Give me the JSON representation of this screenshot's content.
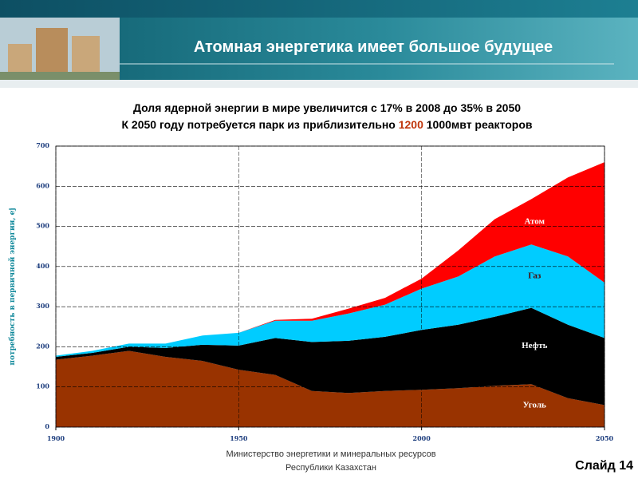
{
  "slide": {
    "title": "Атомная энергетика имеет большое будущее",
    "footer": [
      "Министерство энергетики и минеральных ресурсов",
      "Республики Казахстан"
    ],
    "number": "Слайд 14"
  },
  "chart_data": {
    "type": "stacked_area",
    "title": "Доля ядерной энергии в мире увеличится с 17% в 2008 до 35% в 2050",
    "subtitle": [
      "К 2050 году потребуется парк из приблизительно",
      "1200",
      "1000мвт реакторов"
    ],
    "y_label": "потребность в первичной энергии, ej",
    "x": [
      1900,
      1910,
      1920,
      1930,
      1940,
      1950,
      1960,
      1970,
      1980,
      1990,
      2000,
      2010,
      2020,
      2030,
      2040,
      2050
    ],
    "series": [
      {
        "name": "Уголь",
        "color": "#993300",
        "values": [
          168,
          178,
          190,
          175,
          165,
          143,
          130,
          90,
          85,
          90,
          93,
          97,
          103,
          107,
          72,
          55
        ]
      },
      {
        "name": "Нефть",
        "color": "#000000",
        "values": [
          7,
          7,
          10,
          22,
          40,
          60,
          92,
          122,
          130,
          135,
          149,
          158,
          172,
          190,
          183,
          167
        ]
      },
      {
        "name": "Газ",
        "color": "#00ccff",
        "values": [
          3,
          5,
          8,
          11,
          23,
          32,
          43,
          53,
          68,
          80,
          103,
          120,
          150,
          158,
          170,
          138
        ]
      },
      {
        "name": "Атом",
        "color": "#ff0000",
        "values": [
          0,
          0,
          0,
          0,
          0,
          0,
          2,
          5,
          12,
          17,
          25,
          65,
          93,
          113,
          197,
          300
        ]
      }
    ],
    "xlim": [
      1900,
      2050
    ],
    "xticks": [
      1900,
      1950,
      2000,
      2050
    ],
    "ylim": [
      0,
      700
    ],
    "yticks": [
      0,
      100,
      200,
      300,
      400,
      500,
      600,
      700
    ],
    "grid": true
  }
}
